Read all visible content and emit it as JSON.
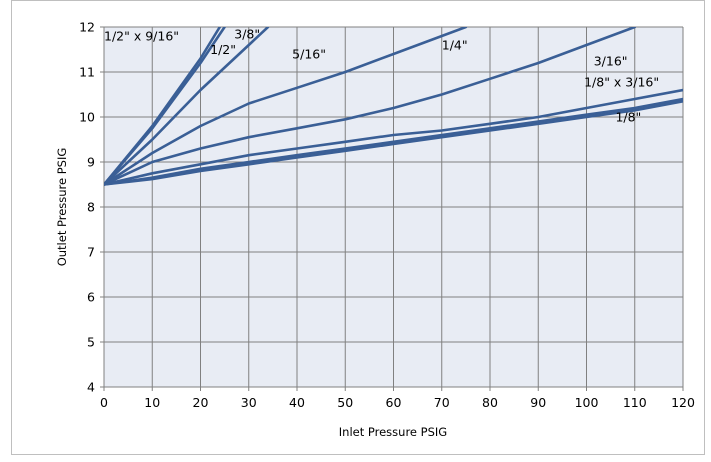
{
  "chart_data": {
    "type": "line",
    "title": "",
    "xlabel": "Inlet Pressure   PSIG",
    "ylabel": "Outlet Pressure  PSIG",
    "xlim": [
      0,
      120
    ],
    "ylim": [
      4,
      12
    ],
    "x_ticks": [
      0,
      10,
      20,
      30,
      40,
      50,
      60,
      70,
      80,
      90,
      100,
      110,
      120
    ],
    "y_ticks": [
      4,
      5,
      6,
      7,
      8,
      9,
      10,
      11,
      12
    ],
    "grid": true,
    "legend": "none (series labeled directly on curves)",
    "colors": {
      "plot_background": "#e8ecf4",
      "grid": "#808080",
      "line": "#3a5f96"
    },
    "series": [
      {
        "name": "1/2\" x 9/16\"",
        "points": [
          [
            0,
            8.5
          ],
          [
            10,
            9.8
          ],
          [
            20,
            11.3
          ],
          [
            24,
            12
          ]
        ]
      },
      {
        "name": "1/2\"",
        "points": [
          [
            0,
            8.5
          ],
          [
            10,
            9.75
          ],
          [
            20,
            11.2
          ],
          [
            25,
            12
          ]
        ]
      },
      {
        "name": "3/8\"",
        "points": [
          [
            0,
            8.5
          ],
          [
            10,
            9.5
          ],
          [
            20,
            10.6
          ],
          [
            30,
            11.6
          ],
          [
            34,
            12
          ]
        ]
      },
      {
        "name": "5/16\"",
        "points": [
          [
            0,
            8.5
          ],
          [
            10,
            9.2
          ],
          [
            20,
            9.8
          ],
          [
            30,
            10.3
          ],
          [
            40,
            10.65
          ],
          [
            50,
            11.0
          ],
          [
            60,
            11.4
          ],
          [
            70,
            11.8
          ],
          [
            75,
            12
          ]
        ]
      },
      {
        "name": "1/4\"",
        "points": [
          [
            0,
            8.5
          ],
          [
            10,
            9.0
          ],
          [
            20,
            9.3
          ],
          [
            30,
            9.55
          ],
          [
            40,
            9.75
          ],
          [
            50,
            9.95
          ],
          [
            60,
            10.2
          ],
          [
            70,
            10.5
          ],
          [
            80,
            10.85
          ],
          [
            90,
            11.2
          ],
          [
            100,
            11.6
          ],
          [
            110,
            12
          ]
        ]
      },
      {
        "name": "3/16\"",
        "points": [
          [
            0,
            8.5
          ],
          [
            10,
            8.75
          ],
          [
            20,
            8.95
          ],
          [
            30,
            9.15
          ],
          [
            40,
            9.3
          ],
          [
            50,
            9.45
          ],
          [
            60,
            9.6
          ],
          [
            70,
            9.7
          ],
          [
            80,
            9.85
          ],
          [
            90,
            10.0
          ],
          [
            100,
            10.2
          ],
          [
            110,
            10.4
          ],
          [
            120,
            10.6
          ]
        ]
      },
      {
        "name": "1/8\" x 3/16\"",
        "points": [
          [
            0,
            8.5
          ],
          [
            10,
            8.65
          ],
          [
            20,
            8.85
          ],
          [
            30,
            9.0
          ],
          [
            40,
            9.15
          ],
          [
            50,
            9.3
          ],
          [
            60,
            9.45
          ],
          [
            70,
            9.6
          ],
          [
            80,
            9.75
          ],
          [
            90,
            9.9
          ],
          [
            100,
            10.05
          ],
          [
            110,
            10.2
          ],
          [
            120,
            10.4
          ]
        ]
      },
      {
        "name": "1/8\"",
        "points": [
          [
            0,
            8.5
          ],
          [
            10,
            8.62
          ],
          [
            20,
            8.8
          ],
          [
            30,
            8.95
          ],
          [
            40,
            9.1
          ],
          [
            50,
            9.25
          ],
          [
            60,
            9.4
          ],
          [
            70,
            9.55
          ],
          [
            80,
            9.7
          ],
          [
            90,
            9.85
          ],
          [
            100,
            10.0
          ],
          [
            110,
            10.15
          ],
          [
            120,
            10.35
          ]
        ]
      }
    ],
    "series_labels": [
      {
        "text": "1/2\" x 9/16\"",
        "x": 0,
        "y": 11.7
      },
      {
        "text": "3/8\"",
        "x": 27,
        "y": 11.75
      },
      {
        "text": "1/2\"",
        "x": 22,
        "y": 11.4
      },
      {
        "text": "5/16\"",
        "x": 39,
        "y": 11.3
      },
      {
        "text": "1/4\"",
        "x": 70,
        "y": 11.5
      },
      {
        "text": "3/16\"",
        "x": 101.5,
        "y": 11.15
      },
      {
        "text": "1/8\" x 3/16\"",
        "x": 99.5,
        "y": 10.68
      },
      {
        "text": "1/8\"",
        "x": 106,
        "y": 9.9
      }
    ]
  }
}
